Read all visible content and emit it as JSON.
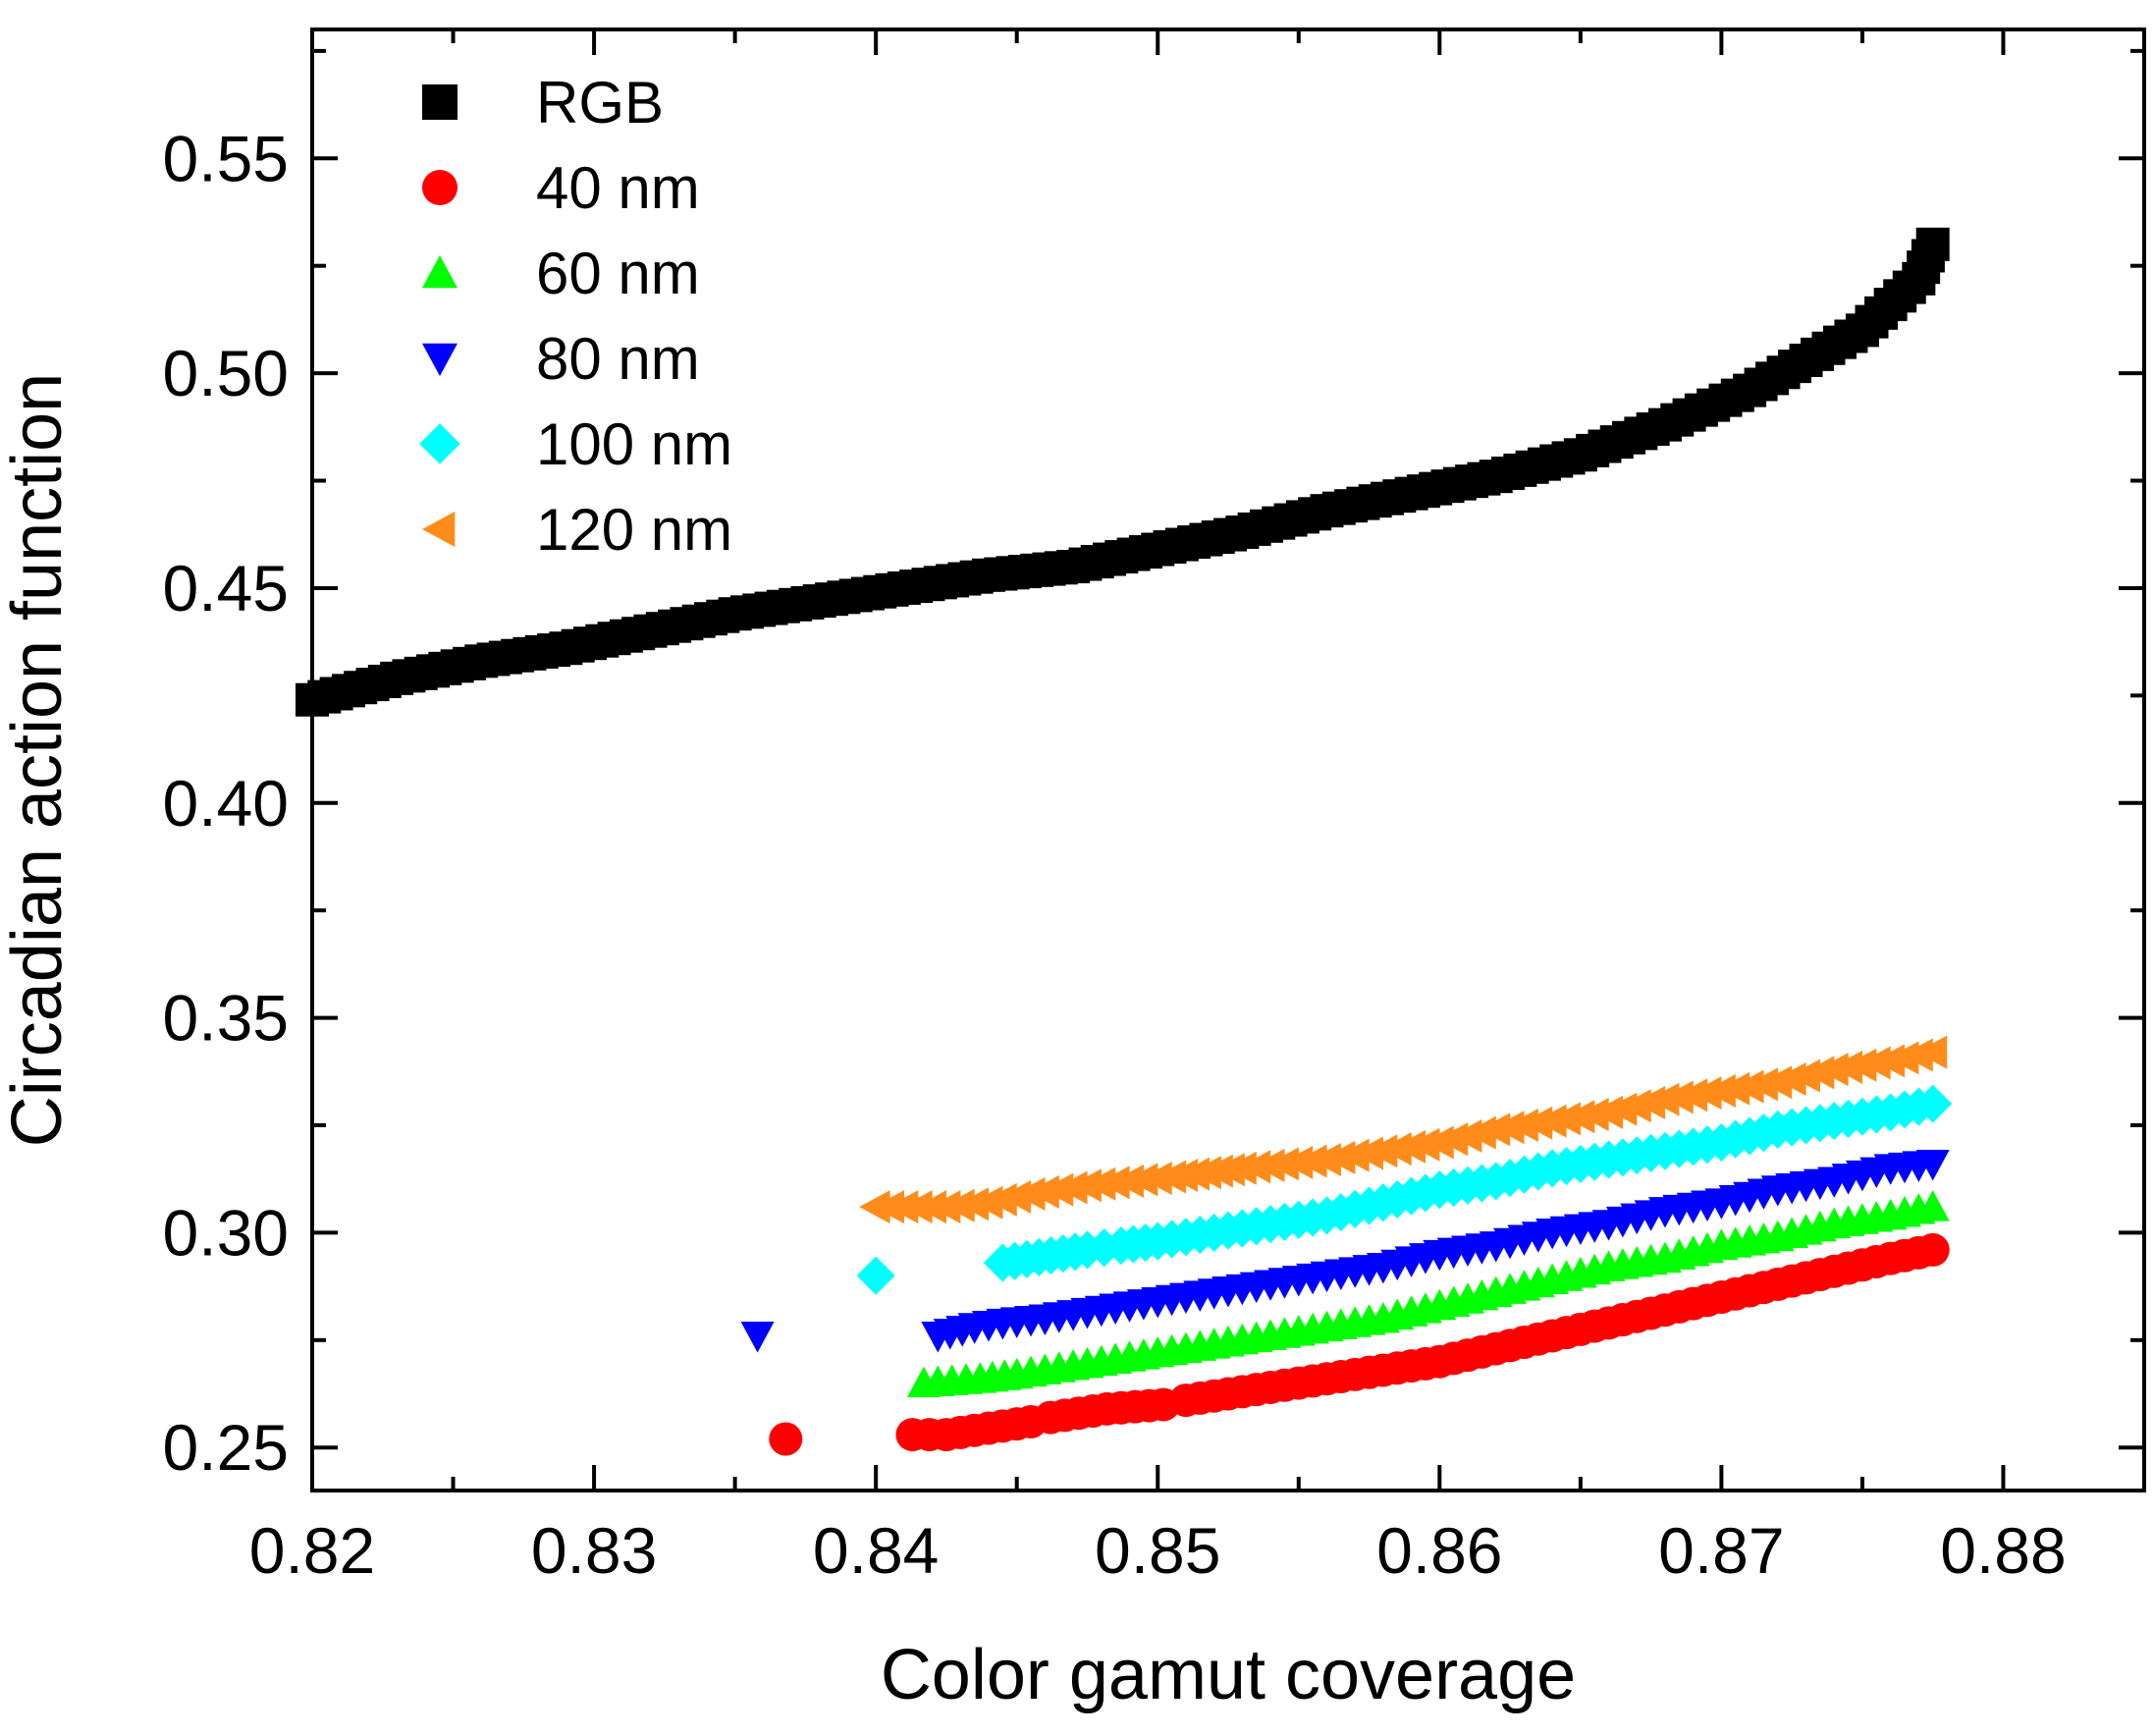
{
  "chart_data": {
    "type": "scatter",
    "xlabel": "Color gamut coverage",
    "ylabel": "Circadian action function",
    "xlim": [
      0.82,
      0.885
    ],
    "ylim": [
      0.24,
      0.58
    ],
    "x_ticks": [
      "0.82",
      "0.83",
      "0.84",
      "0.85",
      "0.86",
      "0.87",
      "0.88"
    ],
    "y_ticks": [
      "0.25",
      "0.30",
      "0.35",
      "0.40",
      "0.45",
      "0.50",
      "0.55"
    ],
    "x_tick_values": [
      0.82,
      0.83,
      0.84,
      0.85,
      0.86,
      0.87,
      0.88
    ],
    "y_tick_values": [
      0.25,
      0.3,
      0.35,
      0.4,
      0.45,
      0.5,
      0.55
    ],
    "grid": false,
    "legend_position": "top-left",
    "series": [
      {
        "name": "RGB",
        "marker": "square",
        "color": "#000000",
        "x": [
          0.82,
          0.823,
          0.826,
          0.829,
          0.832,
          0.835,
          0.838,
          0.841,
          0.844,
          0.847,
          0.85,
          0.853,
          0.856,
          0.859,
          0.862,
          0.865,
          0.868,
          0.871,
          0.873,
          0.875,
          0.876,
          0.877,
          0.8775
        ],
        "y": [
          0.424,
          0.429,
          0.433,
          0.436,
          0.44,
          0.444,
          0.447,
          0.45,
          0.453,
          0.455,
          0.459,
          0.463,
          0.468,
          0.472,
          0.476,
          0.481,
          0.488,
          0.496,
          0.503,
          0.51,
          0.516,
          0.522,
          0.53
        ]
      },
      {
        "name": "40 nm",
        "marker": "circle",
        "color": "#ff0000",
        "x": [
          0.8368,
          0.8413,
          0.8425,
          0.8435,
          0.8445,
          0.8455,
          0.8462,
          0.8482,
          0.8502,
          0.851,
          0.852,
          0.853,
          0.854,
          0.856,
          0.858,
          0.86,
          0.862,
          0.864,
          0.866,
          0.868,
          0.87,
          0.872,
          0.874,
          0.876,
          0.8775
        ],
        "y": [
          0.252,
          0.253,
          0.253,
          0.254,
          0.255,
          0.256,
          0.257,
          0.259,
          0.26,
          0.261,
          0.262,
          0.263,
          0.264,
          0.266,
          0.268,
          0.27,
          0.273,
          0.276,
          0.279,
          0.282,
          0.285,
          0.288,
          0.291,
          0.294,
          0.296
        ]
      },
      {
        "name": "60 nm",
        "marker": "triangle-up",
        "color": "#00ff00",
        "x": [
          0.8417,
          0.8437,
          0.845,
          0.846,
          0.848,
          0.85,
          0.852,
          0.854,
          0.856,
          0.858,
          0.86,
          0.862,
          0.864,
          0.866,
          0.868,
          0.87,
          0.872,
          0.874,
          0.876,
          0.8775
        ],
        "y": [
          0.265,
          0.266,
          0.267,
          0.268,
          0.27,
          0.272,
          0.274,
          0.276,
          0.278,
          0.28,
          0.283,
          0.286,
          0.289,
          0.292,
          0.294,
          0.297,
          0.299,
          0.302,
          0.304,
          0.306
        ]
      },
      {
        "name": "80 nm",
        "marker": "triangle-down",
        "color": "#0000ff",
        "x": [
          0.8358,
          0.8422,
          0.8435,
          0.8445,
          0.846,
          0.848,
          0.85,
          0.852,
          0.854,
          0.856,
          0.858,
          0.86,
          0.862,
          0.864,
          0.866,
          0.868,
          0.87,
          0.872,
          0.874,
          0.876,
          0.8775
        ],
        "y": [
          0.276,
          0.276,
          0.278,
          0.279,
          0.28,
          0.282,
          0.284,
          0.286,
          0.288,
          0.29,
          0.292,
          0.295,
          0.297,
          0.3,
          0.302,
          0.305,
          0.307,
          0.31,
          0.312,
          0.315,
          0.316
        ]
      },
      {
        "name": "100 nm",
        "marker": "diamond",
        "color": "#00ffff",
        "x": [
          0.84,
          0.8445,
          0.8475,
          0.8487,
          0.85,
          0.852,
          0.854,
          0.856,
          0.858,
          0.86,
          0.862,
          0.864,
          0.866,
          0.868,
          0.87,
          0.872,
          0.874,
          0.876,
          0.8775
        ],
        "y": [
          0.29,
          0.293,
          0.296,
          0.297,
          0.298,
          0.3,
          0.302,
          0.304,
          0.307,
          0.31,
          0.312,
          0.315,
          0.317,
          0.319,
          0.321,
          0.324,
          0.326,
          0.328,
          0.33
        ]
      },
      {
        "name": "120 nm",
        "marker": "triangle-left",
        "color": "#ff8c1a",
        "x": [
          0.84,
          0.8425,
          0.844,
          0.8455,
          0.8475,
          0.849,
          0.8505,
          0.853,
          0.8545,
          0.856,
          0.858,
          0.86,
          0.862,
          0.864,
          0.866,
          0.868,
          0.87,
          0.872,
          0.874,
          0.876,
          0.8775
        ],
        "y": [
          0.306,
          0.306,
          0.307,
          0.309,
          0.311,
          0.312,
          0.313,
          0.315,
          0.316,
          0.317,
          0.319,
          0.321,
          0.324,
          0.326,
          0.328,
          0.331,
          0.333,
          0.335,
          0.338,
          0.34,
          0.342
        ]
      }
    ]
  }
}
